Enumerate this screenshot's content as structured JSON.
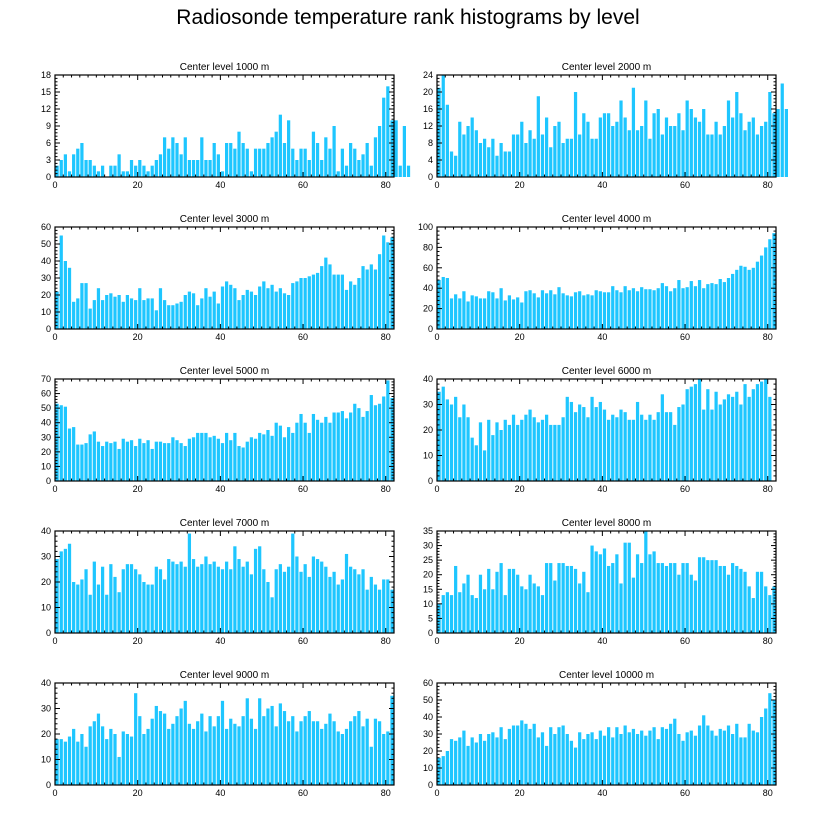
{
  "page_title": "Radiosonde temperature rank histograms by level",
  "colors": {
    "bar": "#1ec6ff",
    "axis": "#000000",
    "background": "#ffffff"
  },
  "chart_data": [
    {
      "type": "bar",
      "title": "Center level 1000 m",
      "xlim": [
        0,
        82
      ],
      "ylim": [
        0,
        18
      ],
      "yticks": [
        0,
        3,
        6,
        9,
        12,
        15,
        18
      ],
      "xticks": [
        0,
        20,
        40,
        60,
        80
      ],
      "values": [
        2,
        3,
        4,
        1,
        4,
        5,
        6,
        3,
        3,
        2,
        1,
        2,
        0,
        2,
        2,
        4,
        1,
        1,
        3,
        2,
        3,
        2,
        1,
        2,
        3,
        4,
        7,
        5,
        7,
        6,
        4,
        7,
        3,
        3,
        3,
        7,
        3,
        3,
        6,
        4,
        1,
        6,
        6,
        5,
        8,
        6,
        5,
        1,
        5,
        5,
        5,
        6,
        7,
        8,
        11,
        6,
        10,
        5,
        3,
        5,
        5,
        3,
        8,
        6,
        3,
        7,
        5,
        9,
        1,
        5,
        2,
        6,
        5,
        3,
        4,
        6,
        2,
        7,
        9,
        14,
        16,
        10,
        10,
        2,
        9,
        2
      ]
    },
    {
      "type": "bar",
      "title": "Center level 2000 m",
      "xlim": [
        0,
        82
      ],
      "ylim": [
        0,
        24
      ],
      "yticks": [
        0,
        4,
        8,
        12,
        16,
        20,
        24
      ],
      "xticks": [
        0,
        20,
        40,
        60,
        80
      ],
      "values": [
        21,
        24,
        17,
        6,
        5,
        13,
        10,
        12,
        14,
        11,
        8,
        9,
        7,
        9,
        5,
        8,
        6,
        6,
        10,
        10,
        13,
        8,
        11,
        9,
        19,
        10,
        14,
        7,
        12,
        13,
        8,
        9,
        9,
        20,
        10,
        15,
        13,
        9,
        9,
        14,
        15,
        15,
        12,
        13,
        18,
        14,
        11,
        21,
        11,
        12,
        18,
        9,
        15,
        16,
        10,
        14,
        12,
        12,
        15,
        11,
        18,
        16,
        14,
        13,
        16,
        10,
        10,
        13,
        10,
        12,
        18,
        14,
        20,
        15,
        11,
        13,
        14,
        10,
        12,
        13,
        20,
        15,
        16,
        22,
        16
      ]
    },
    {
      "type": "bar",
      "title": "Center level 3000 m",
      "xlim": [
        0,
        82
      ],
      "ylim": [
        0,
        60
      ],
      "yticks": [
        0,
        10,
        20,
        30,
        40,
        50,
        60
      ],
      "xticks": [
        0,
        20,
        40,
        60,
        80
      ],
      "values": [
        22,
        55,
        40,
        36,
        16,
        18,
        27,
        27,
        12,
        17,
        24,
        17,
        20,
        21,
        19,
        20,
        16,
        20,
        18,
        17,
        24,
        17,
        18,
        18,
        11,
        24,
        17,
        14,
        14,
        15,
        16,
        20,
        22,
        21,
        14,
        18,
        24,
        19,
        22,
        15,
        25,
        28,
        26,
        24,
        17,
        20,
        23,
        22,
        20,
        25,
        28,
        24,
        26,
        22,
        24,
        21,
        20,
        27,
        28,
        30,
        30,
        31,
        32,
        33,
        37,
        42,
        38,
        32,
        32,
        32,
        23,
        28,
        26,
        30,
        37,
        35,
        38,
        35,
        44,
        55,
        51,
        54
      ]
    },
    {
      "type": "bar",
      "title": "Center level 4000 m",
      "xlim": [
        0,
        82
      ],
      "ylim": [
        0,
        100
      ],
      "yticks": [
        0,
        20,
        40,
        60,
        80,
        100
      ],
      "xticks": [
        0,
        20,
        40,
        60,
        80
      ],
      "values": [
        48,
        51,
        50,
        30,
        34,
        30,
        37,
        27,
        33,
        32,
        30,
        30,
        37,
        36,
        30,
        40,
        28,
        33,
        29,
        31,
        26,
        37,
        38,
        35,
        31,
        38,
        35,
        38,
        34,
        41,
        35,
        33,
        32,
        36,
        37,
        33,
        34,
        33,
        38,
        37,
        36,
        36,
        42,
        38,
        36,
        42,
        38,
        40,
        37,
        41,
        39,
        39,
        38,
        40,
        45,
        42,
        37,
        40,
        48,
        40,
        41,
        47,
        42,
        48,
        40,
        44,
        45,
        44,
        49,
        46,
        50,
        54,
        58,
        62,
        61,
        58,
        60,
        66,
        72,
        80,
        88,
        94
      ]
    },
    {
      "type": "bar",
      "title": "Center level 5000 m",
      "xlim": [
        0,
        82
      ],
      "ylim": [
        0,
        70
      ],
      "yticks": [
        0,
        10,
        20,
        30,
        40,
        50,
        60,
        70
      ],
      "xticks": [
        0,
        20,
        40,
        60,
        80
      ],
      "values": [
        53,
        52,
        51,
        36,
        37,
        25,
        25,
        26,
        32,
        34,
        27,
        24,
        27,
        26,
        27,
        22,
        29,
        27,
        28,
        24,
        29,
        26,
        28,
        22,
        27,
        27,
        26,
        26,
        30,
        28,
        26,
        24,
        29,
        30,
        33,
        33,
        33,
        30,
        31,
        29,
        26,
        33,
        28,
        33,
        24,
        23,
        27,
        30,
        29,
        33,
        32,
        35,
        31,
        40,
        38,
        30,
        37,
        33,
        40,
        46,
        40,
        33,
        46,
        42,
        40,
        44,
        40,
        47,
        47,
        48,
        43,
        47,
        53,
        50,
        44,
        48,
        59,
        52,
        53,
        58,
        69,
        57
      ]
    },
    {
      "type": "bar",
      "title": "Center level 6000 m",
      "xlim": [
        0,
        82
      ],
      "ylim": [
        0,
        40
      ],
      "yticks": [
        0,
        10,
        20,
        30,
        40
      ],
      "xticks": [
        0,
        20,
        40,
        60,
        80
      ],
      "values": [
        35,
        37,
        32,
        30,
        33,
        25,
        30,
        25,
        17,
        14,
        23,
        12,
        24,
        18,
        23,
        20,
        24,
        22,
        26,
        22,
        24,
        26,
        28,
        25,
        23,
        24,
        26,
        22,
        22,
        22,
        25,
        33,
        31,
        27,
        30,
        29,
        25,
        33,
        29,
        31,
        28,
        24,
        26,
        25,
        28,
        27,
        24,
        24,
        31,
        26,
        24,
        26,
        24,
        27,
        34,
        27,
        27,
        22,
        29,
        30,
        36,
        37,
        38,
        40,
        28,
        36,
        28,
        35,
        30,
        32,
        34,
        33,
        35,
        30,
        38,
        33,
        36,
        38,
        39,
        40,
        33
      ]
    },
    {
      "type": "bar",
      "title": "Center level 7000 m",
      "xlim": [
        0,
        82
      ],
      "ylim": [
        0,
        40
      ],
      "yticks": [
        0,
        10,
        20,
        30,
        40
      ],
      "xticks": [
        0,
        20,
        40,
        60,
        80
      ],
      "values": [
        29,
        32,
        33,
        35,
        20,
        19,
        21,
        25,
        15,
        28,
        19,
        26,
        15,
        27,
        22,
        16,
        25,
        27,
        27,
        25,
        23,
        20,
        19,
        19,
        26,
        25,
        21,
        29,
        28,
        27,
        28,
        26,
        39,
        29,
        26,
        27,
        30,
        27,
        28,
        26,
        25,
        28,
        25,
        34,
        29,
        26,
        28,
        23,
        33,
        34,
        25,
        20,
        14,
        25,
        27,
        24,
        26,
        39,
        30,
        24,
        27,
        22,
        30,
        29,
        28,
        26,
        22,
        24,
        19,
        21,
        31,
        26,
        25,
        23,
        25,
        17,
        22,
        19,
        17,
        21,
        21,
        17
      ]
    },
    {
      "type": "bar",
      "title": "Center level 8000 m",
      "xlim": [
        0,
        82
      ],
      "ylim": [
        0,
        35
      ],
      "yticks": [
        0,
        5,
        10,
        15,
        20,
        25,
        30,
        35
      ],
      "xticks": [
        0,
        20,
        40,
        60,
        80
      ],
      "values": [
        10,
        13,
        14,
        13,
        23,
        14,
        17,
        20,
        13,
        12,
        20,
        15,
        22,
        15,
        21,
        24,
        13,
        22,
        22,
        20,
        16,
        15,
        20,
        17,
        16,
        13,
        24,
        24,
        18,
        24,
        24,
        23,
        23,
        22,
        17,
        21,
        14,
        30,
        28,
        27,
        29,
        23,
        24,
        27,
        17,
        31,
        31,
        19,
        27,
        24,
        35,
        27,
        28,
        24,
        24,
        23,
        24,
        24,
        20,
        24,
        24,
        20,
        18,
        26,
        26,
        25,
        25,
        25,
        23,
        23,
        20,
        24,
        23,
        22,
        21,
        16,
        12,
        21,
        21,
        16,
        13,
        16
      ]
    },
    {
      "type": "bar",
      "title": "Center level 9000 m",
      "xlim": [
        0,
        82
      ],
      "ylim": [
        0,
        40
      ],
      "yticks": [
        0,
        10,
        20,
        30,
        40
      ],
      "xticks": [
        0,
        20,
        40,
        60,
        80
      ],
      "values": [
        18,
        18,
        17,
        19,
        22,
        17,
        20,
        15,
        23,
        25,
        28,
        23,
        18,
        22,
        20,
        11,
        21,
        20,
        19,
        36,
        27,
        20,
        22,
        26,
        31,
        29,
        28,
        22,
        24,
        27,
        30,
        33,
        24,
        22,
        25,
        28,
        21,
        27,
        23,
        27,
        33,
        22,
        26,
        24,
        23,
        27,
        34,
        26,
        22,
        34,
        27,
        30,
        31,
        23,
        32,
        29,
        25,
        27,
        21,
        25,
        27,
        29,
        25,
        25,
        22,
        24,
        28,
        25,
        21,
        20,
        22,
        25,
        27,
        29,
        23,
        26,
        15,
        26,
        25,
        20,
        21,
        35
      ]
    },
    {
      "type": "bar",
      "title": "Center level 10000 m",
      "xlim": [
        0,
        82
      ],
      "ylim": [
        0,
        60
      ],
      "yticks": [
        0,
        10,
        20,
        30,
        40,
        50,
        60
      ],
      "xticks": [
        0,
        20,
        40,
        60,
        80
      ],
      "values": [
        16,
        17,
        20,
        27,
        26,
        28,
        32,
        23,
        28,
        25,
        30,
        26,
        30,
        31,
        28,
        34,
        27,
        33,
        35,
        35,
        38,
        36,
        33,
        36,
        28,
        31,
        23,
        34,
        30,
        34,
        35,
        30,
        26,
        22,
        31,
        27,
        30,
        31,
        27,
        32,
        29,
        34,
        28,
        34,
        30,
        35,
        31,
        33,
        30,
        32,
        29,
        32,
        34,
        27,
        34,
        33,
        36,
        39,
        30,
        26,
        31,
        32,
        29,
        35,
        41,
        35,
        32,
        29,
        33,
        32,
        35,
        30,
        36,
        28,
        28,
        36,
        32,
        31,
        40,
        45,
        54,
        50
      ]
    }
  ]
}
